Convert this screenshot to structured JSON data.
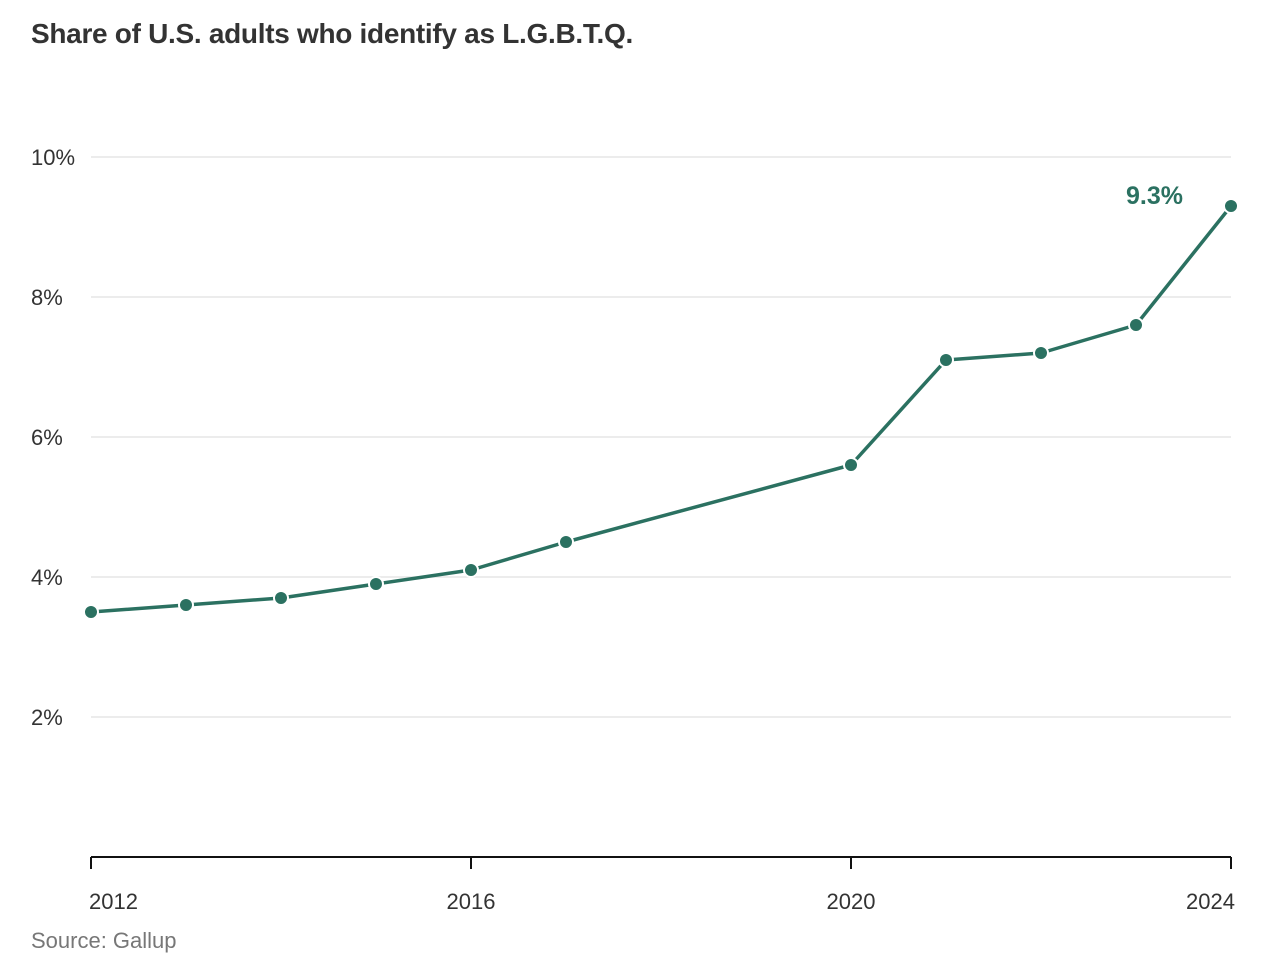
{
  "chart_data": {
    "type": "line",
    "title": "Share of U.S. adults who identify as L.G.B.T.Q.",
    "source": "Source: Gallup",
    "x": [
      2012,
      2013,
      2014,
      2015,
      2016,
      2017,
      2020,
      2021,
      2022,
      2023,
      2024
    ],
    "series": [
      {
        "values": [
          3.5,
          3.6,
          3.7,
          3.9,
          4.1,
          4.5,
          5.6,
          7.1,
          7.2,
          7.6,
          9.3
        ],
        "color": "#2b7161"
      }
    ],
    "xticks": [
      2012,
      2016,
      2020,
      2024
    ],
    "xtick_labels": [
      "2012",
      "2016",
      "2020",
      "2024"
    ],
    "yticks": [
      2,
      4,
      6,
      8,
      10
    ],
    "ytick_labels": [
      "2%",
      "4%",
      "6%",
      "8%",
      "10%"
    ],
    "xlim": [
      2012,
      2024
    ],
    "ylim": [
      0,
      10
    ],
    "grid": true,
    "annotation": {
      "x": 2024,
      "text": "9.3%"
    },
    "xlabel": "",
    "ylabel": ""
  }
}
